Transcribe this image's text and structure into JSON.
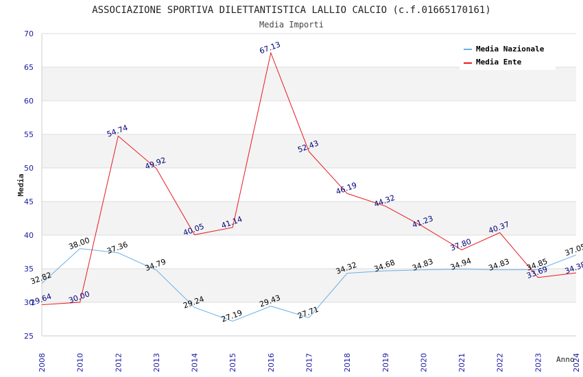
{
  "chart_data": {
    "type": "line",
    "title": "ASSOCIAZIONE SPORTIVA DILETTANTISTICA LALLIO CALCIO (c.f.01665170161)",
    "subtitle": "Media Importi",
    "xlabel": "Anno",
    "ylabel": "Media",
    "ylim": [
      25,
      70
    ],
    "yticks": [
      25,
      30,
      35,
      40,
      45,
      50,
      55,
      60,
      65,
      70
    ],
    "categories": [
      "2008",
      "2010",
      "2012",
      "2013",
      "2014",
      "2015",
      "2016",
      "2017",
      "2018",
      "2019",
      "2020",
      "2021",
      "2022",
      "2023",
      "2024"
    ],
    "series": [
      {
        "name": "Media Nazionale",
        "color": "#6aaee6",
        "label_color": "#000000",
        "values": [
          32.82,
          38.0,
          37.36,
          34.79,
          29.24,
          27.19,
          29.43,
          27.71,
          34.32,
          34.68,
          34.83,
          34.94,
          34.83,
          34.85,
          37.05
        ],
        "labels": [
          "32.82",
          "38.00",
          "37.36",
          "34.79",
          "29.24",
          "27.19",
          "29.43",
          "27.71",
          "34.32",
          "34.68",
          "34.83",
          "34.94",
          "34.83",
          "34.85",
          "37.05"
        ]
      },
      {
        "name": "Media Ente",
        "color": "#e8171e",
        "label_color": "#00007a",
        "values": [
          29.64,
          30.0,
          54.74,
          49.92,
          40.05,
          41.14,
          67.13,
          52.43,
          46.19,
          44.32,
          41.23,
          37.8,
          40.37,
          33.69,
          34.38
        ],
        "labels": [
          "29.64",
          "30.00",
          "54.74",
          "49.92",
          "40.05",
          "41.14",
          "67.13",
          "52.43",
          "46.19",
          "44.32",
          "41.23",
          "37.80",
          "40.37",
          "33.69",
          "34.38"
        ]
      }
    ],
    "legend": "top-right",
    "grid": true
  }
}
